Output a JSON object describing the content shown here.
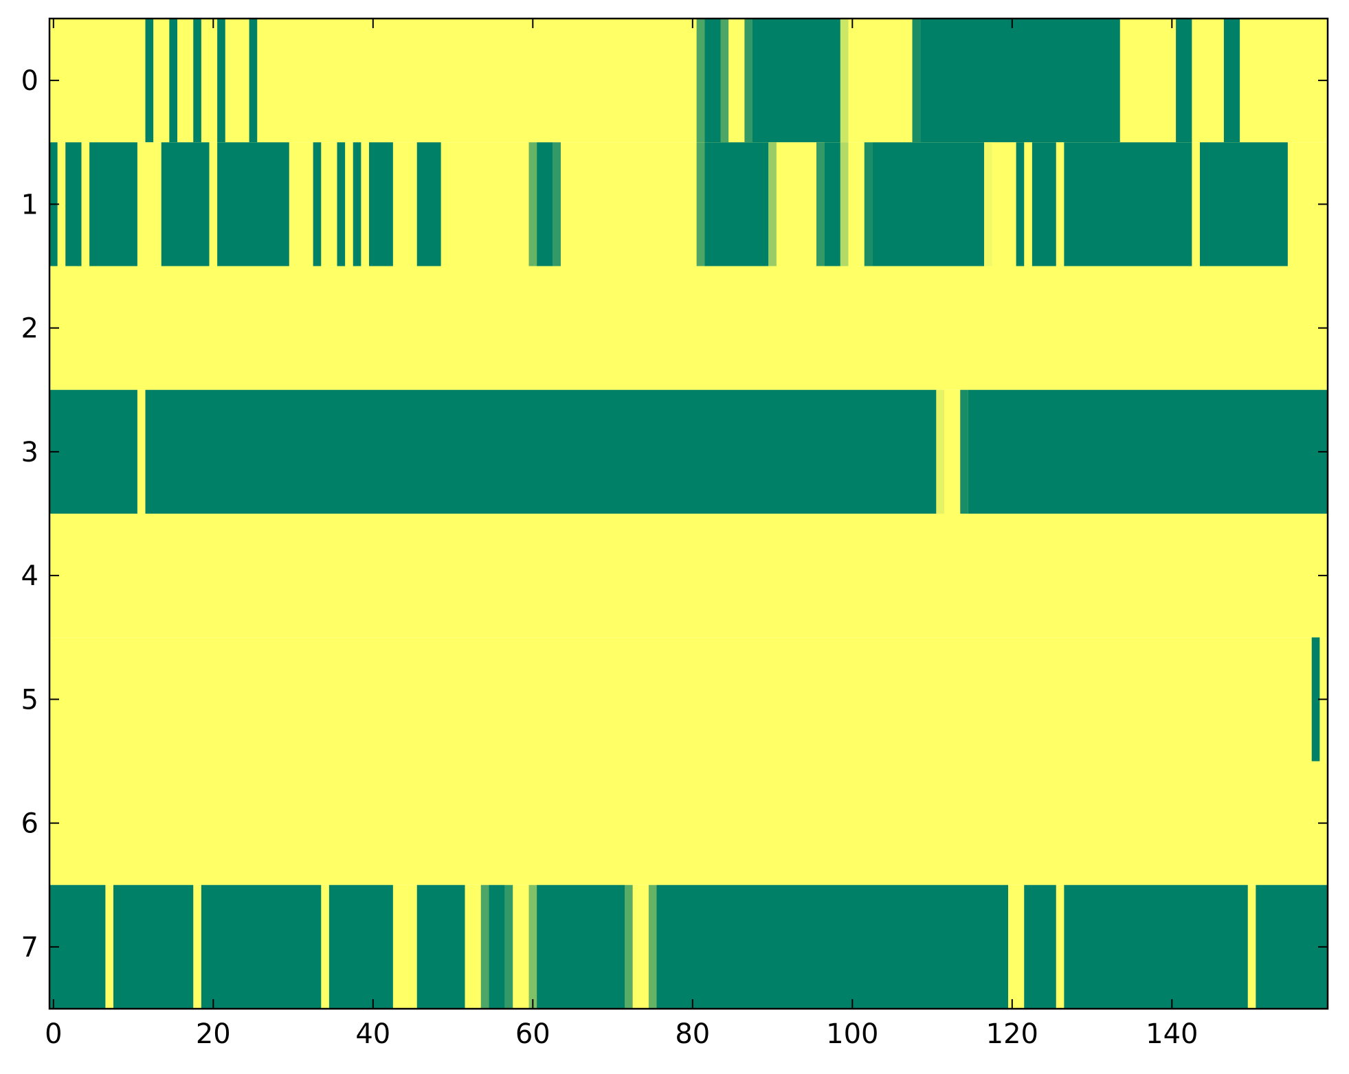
{
  "chart_data": {
    "type": "heatmap",
    "title": "",
    "xlabel": "",
    "ylabel": "",
    "xlim": [
      -0.5,
      159.5
    ],
    "ylim": [
      7.5,
      -0.5
    ],
    "n_columns": 160,
    "n_rows": 8,
    "value_range": [
      0,
      1
    ],
    "colormap": {
      "low": "#008066",
      "high": "#ffff66"
    },
    "x_ticks": [
      0,
      20,
      40,
      60,
      80,
      100,
      120,
      140
    ],
    "x_tick_labels": [
      "0",
      "20",
      "40",
      "60",
      "80",
      "100",
      "120",
      "140"
    ],
    "y_ticks": [
      0,
      1,
      2,
      3,
      4,
      5,
      6,
      7
    ],
    "y_tick_labels": [
      "0",
      "1",
      "2",
      "3",
      "4",
      "5",
      "6",
      "7"
    ],
    "default_value": 1,
    "rows": [
      {
        "row": 0,
        "segments": [
          [
            12,
            12,
            0
          ],
          [
            15,
            15,
            0
          ],
          [
            18,
            18,
            0
          ],
          [
            21,
            21,
            0
          ],
          [
            25,
            25,
            0
          ],
          [
            81,
            81,
            0.3
          ],
          [
            82,
            83,
            0
          ],
          [
            84,
            84,
            0.3
          ],
          [
            87,
            87,
            0.2
          ],
          [
            88,
            98,
            0
          ],
          [
            99,
            99,
            0.8
          ],
          [
            108,
            108,
            0.1
          ],
          [
            109,
            133,
            0
          ],
          [
            141,
            142,
            0
          ],
          [
            147,
            148,
            0
          ]
        ]
      },
      {
        "row": 1,
        "segments": [
          [
            -1,
            0,
            0
          ],
          [
            2,
            3,
            0
          ],
          [
            5,
            10,
            0
          ],
          [
            14,
            19,
            0
          ],
          [
            21,
            29,
            0
          ],
          [
            33,
            33,
            0
          ],
          [
            36,
            36,
            0
          ],
          [
            38,
            38,
            0
          ],
          [
            40,
            42,
            0
          ],
          [
            46,
            48,
            0
          ],
          [
            60,
            60,
            0.4
          ],
          [
            61,
            62,
            0
          ],
          [
            63,
            63,
            0.2
          ],
          [
            81,
            81,
            0.3
          ],
          [
            82,
            89,
            0
          ],
          [
            90,
            90,
            0.6
          ],
          [
            96,
            96,
            0.2
          ],
          [
            97,
            98,
            0
          ],
          [
            99,
            99,
            0.7
          ],
          [
            102,
            102,
            0.1
          ],
          [
            103,
            116,
            0
          ],
          [
            117,
            117,
            0.95
          ],
          [
            121,
            121,
            0
          ],
          [
            123,
            125,
            0
          ],
          [
            127,
            142,
            0
          ],
          [
            144,
            154,
            0
          ]
        ]
      },
      {
        "row": 2,
        "segments": []
      },
      {
        "row": 3,
        "segments": [
          [
            -1,
            10,
            0
          ],
          [
            12,
            110,
            0
          ],
          [
            111,
            111,
            0.9
          ],
          [
            114,
            114,
            0.1
          ],
          [
            115,
            160,
            0
          ]
        ]
      },
      {
        "row": 4,
        "segments": []
      },
      {
        "row": 5,
        "segments": [
          [
            158,
            158,
            0
          ]
        ]
      },
      {
        "row": 6,
        "segments": []
      },
      {
        "row": 7,
        "segments": [
          [
            -1,
            6,
            0
          ],
          [
            8,
            17,
            0
          ],
          [
            19,
            33,
            0
          ],
          [
            35,
            42,
            0
          ],
          [
            46,
            51,
            0
          ],
          [
            54,
            54,
            0.3
          ],
          [
            55,
            56,
            0
          ],
          [
            57,
            57,
            0.2
          ],
          [
            60,
            60,
            0.5
          ],
          [
            61,
            71,
            0
          ],
          [
            72,
            72,
            0.35
          ],
          [
            75,
            75,
            0.4
          ],
          [
            76,
            119,
            0
          ],
          [
            122,
            125,
            0
          ],
          [
            127,
            149,
            0
          ],
          [
            151,
            160,
            0
          ]
        ]
      }
    ]
  }
}
